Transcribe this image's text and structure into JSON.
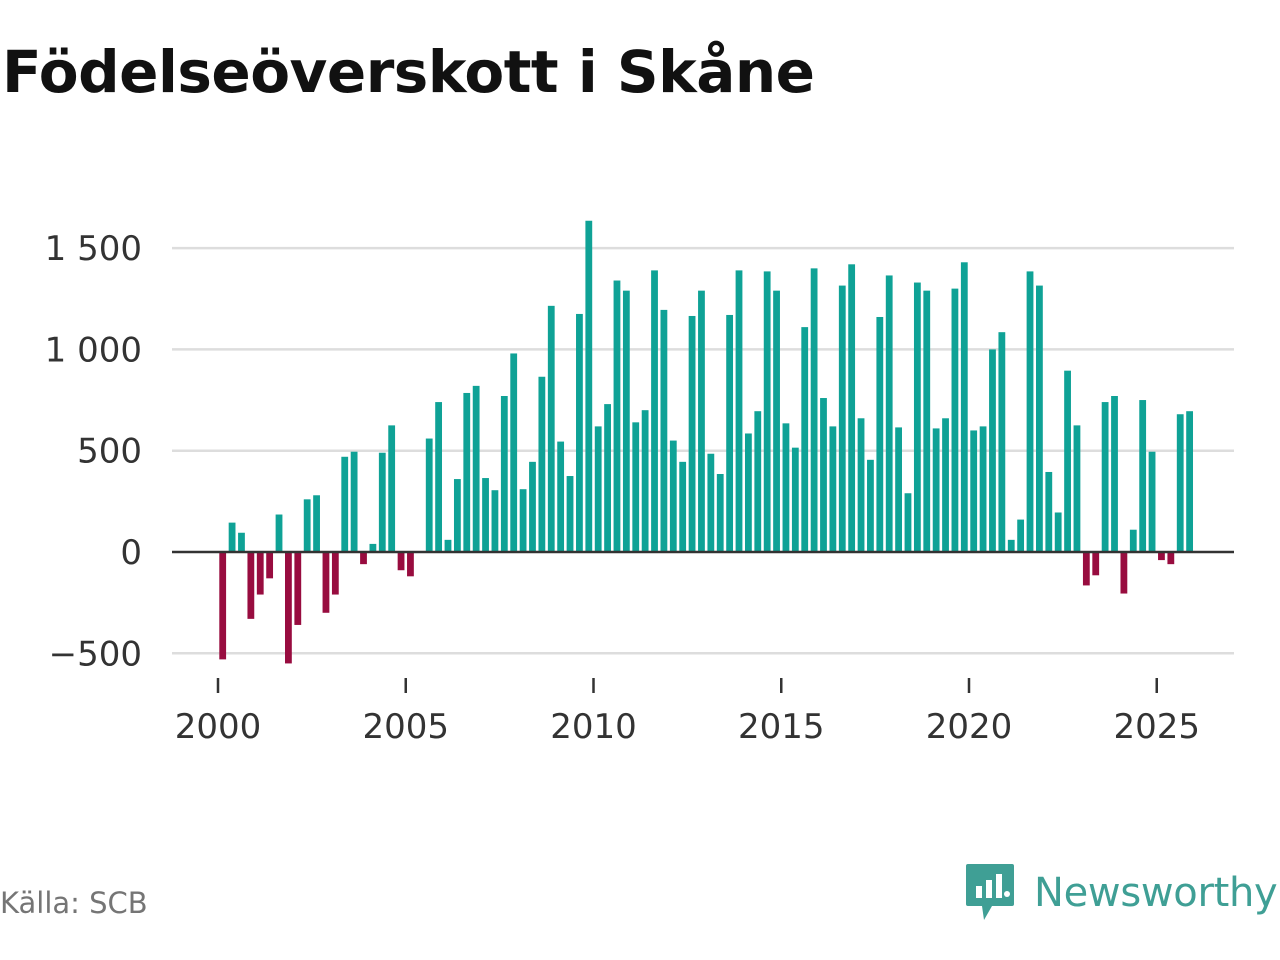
{
  "title": "Födelseöverskott i Skåne",
  "source": "Källa: SCB",
  "brand": {
    "name": "Newsworthy",
    "icon": "newsworthy-logo-icon"
  },
  "colors": {
    "positive": "#0fa296",
    "negative": "#980c3f",
    "grid": "#dddddd",
    "zero": "#333333",
    "brand": "#3f9f95"
  },
  "chart_data": {
    "type": "bar",
    "title": "Födelseöverskott i Skåne",
    "xlabel": "",
    "ylabel": "",
    "ylim": [
      -600,
      1700
    ],
    "yticks": [
      -500,
      0,
      500,
      1000,
      1500
    ],
    "ytick_labels": [
      "−500",
      "0",
      "500",
      "1 000",
      "1 500"
    ],
    "xticks": [
      2000,
      2005,
      2010,
      2015,
      2020,
      2025
    ],
    "xtick_labels": [
      "2000",
      "2005",
      "2010",
      "2015",
      "2020",
      "2025"
    ],
    "xlim": [
      1999.0,
      2028.0
    ],
    "grid": true,
    "legend": "none",
    "x": [
      2000.125,
      2000.375,
      2000.625,
      2000.875,
      2001.125,
      2001.375,
      2001.625,
      2001.875,
      2002.125,
      2002.375,
      2002.625,
      2002.875,
      2003.125,
      2003.375,
      2003.625,
      2003.875,
      2004.125,
      2004.375,
      2004.625,
      2004.875,
      2005.125,
      2005.375,
      2005.625,
      2005.875,
      2006.125,
      2006.375,
      2006.625,
      2006.875,
      2007.125,
      2007.375,
      2007.625,
      2007.875,
      2008.125,
      2008.375,
      2008.625,
      2008.875,
      2009.125,
      2009.375,
      2009.625,
      2009.875,
      2010.125,
      2010.375,
      2010.625,
      2010.875,
      2011.125,
      2011.375,
      2011.625,
      2011.875,
      2012.125,
      2012.375,
      2012.625,
      2012.875,
      2013.125,
      2013.375,
      2013.625,
      2013.875,
      2014.125,
      2014.375,
      2014.625,
      2014.875,
      2015.125,
      2015.375,
      2015.625,
      2015.875,
      2016.125,
      2016.375,
      2016.625,
      2016.875,
      2017.125,
      2017.375,
      2017.625,
      2017.875,
      2018.125,
      2018.375,
      2018.625,
      2018.875,
      2019.125,
      2019.375,
      2019.625,
      2019.875,
      2020.125,
      2020.375,
      2020.625,
      2020.875,
      2021.125,
      2021.375,
      2021.625,
      2021.875,
      2022.125,
      2022.375,
      2022.625,
      2022.875,
      2023.125,
      2023.375,
      2023.625,
      2023.875,
      2024.125,
      2024.375,
      2024.625,
      2024.875,
      2025.125,
      2025.375,
      2025.625,
      2025.875
    ],
    "values": [
      -530,
      145,
      95,
      -330,
      -210,
      -130,
      185,
      -550,
      -360,
      260,
      280,
      -300,
      -210,
      470,
      495,
      -60,
      40,
      490,
      625,
      -90,
      -120,
      0,
      560,
      740,
      60,
      360,
      785,
      820,
      365,
      305,
      770,
      980,
      310,
      445,
      865,
      1215,
      545,
      375,
      1175,
      1635,
      620,
      730,
      1340,
      1290,
      640,
      700,
      1390,
      1195,
      550,
      445,
      1165,
      1290,
      485,
      385,
      1170,
      1390,
      585,
      695,
      1385,
      1290,
      635,
      515,
      1110,
      1400,
      760,
      620,
      1315,
      1420,
      660,
      455,
      1160,
      1365,
      615,
      290,
      1330,
      1290,
      610,
      660,
      1300,
      1430,
      600,
      620,
      1000,
      1085,
      60,
      160,
      1385,
      1315,
      395,
      195,
      895,
      625,
      -165,
      -115,
      740,
      770,
      -205,
      110,
      750,
      495,
      -40,
      -60,
      680,
      695
    ]
  }
}
